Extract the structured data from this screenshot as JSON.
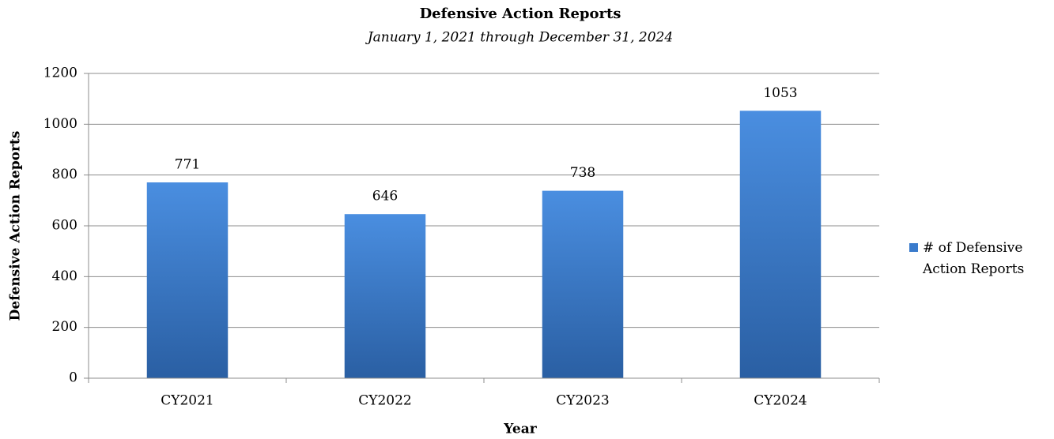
{
  "chart_data": {
    "type": "bar",
    "title": "Defensive Action Reports",
    "subtitle": "January 1, 2021 through December 31, 2024",
    "x_label": "Year",
    "y_label": "Defensive Action Reports",
    "categories": [
      "CY2021",
      "CY2022",
      "CY2023",
      "CY2024"
    ],
    "series": [
      {
        "name": "# of Defensive Action Reports",
        "color": "#3a7bcc",
        "values": [
          771,
          646,
          738,
          1053
        ]
      }
    ],
    "ylim": [
      0,
      1200
    ],
    "yticks": [
      0,
      200,
      400,
      600,
      800,
      1000,
      1200
    ],
    "grid": true,
    "legend": "right"
  }
}
